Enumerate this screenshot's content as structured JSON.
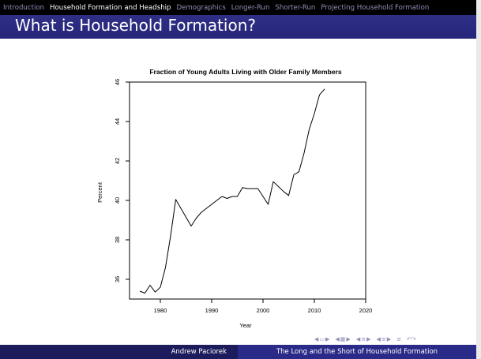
{
  "nav": {
    "items": [
      "Introduction",
      "Household Formation and Headship",
      "Demographics",
      "Longer-Run",
      "Shorter-Run",
      "Projecting Household Formation"
    ],
    "active_index": 1
  },
  "slide": {
    "title": "What is Household Formation?"
  },
  "footer": {
    "author": "Andrew Paciorek",
    "talk_title": "The Long and the Short of Household Formation"
  },
  "beamer_nav_icons": [
    "frame-prev-icon",
    "frame-next-icon",
    "subsection-prev-icon",
    "subsection-next-icon",
    "section-prev-icon",
    "section-next-icon",
    "align-icon",
    "search-icon"
  ],
  "colors": {
    "title_bar": "#2f2f86",
    "navbar": "#000000",
    "nav_inactive": "#8f8fb8",
    "footer_left": "#1c1c5c",
    "footer_right": "#2a2a88"
  },
  "chart_data": {
    "type": "line",
    "title": "Fraction of Young Adults Living with Older Family Members",
    "xlabel": "Year",
    "ylabel": "Percent",
    "xlim": [
      1974,
      2020
    ],
    "ylim": [
      35,
      46
    ],
    "xticks": [
      1980,
      1990,
      2000,
      2010,
      2020
    ],
    "yticks": [
      36,
      38,
      40,
      42,
      44,
      46
    ],
    "grid": false,
    "series": [
      {
        "x": [
          1976,
          1977,
          1978,
          1979,
          1980,
          1981,
          1982,
          1983,
          1984,
          1985,
          1986,
          1987,
          1988,
          1989,
          1990,
          1991,
          1992,
          1993,
          1994,
          1995,
          1996,
          1997,
          1998,
          1999,
          2000,
          2001,
          2002,
          2003,
          2004,
          2005,
          2006,
          2007,
          2008,
          2009,
          2010,
          2011,
          2012
        ],
        "y": [
          35.4,
          35.3,
          35.7,
          35.35,
          35.6,
          36.6,
          38.2,
          40.05,
          39.6,
          39.15,
          38.7,
          39.1,
          39.4,
          39.6,
          39.8,
          40.0,
          40.2,
          40.1,
          40.2,
          40.2,
          40.65,
          40.6,
          40.6,
          40.6,
          40.2,
          39.8,
          40.95,
          40.7,
          40.45,
          40.25,
          41.3,
          41.45,
          42.4,
          43.6,
          44.4,
          45.35,
          45.65
        ]
      }
    ]
  }
}
